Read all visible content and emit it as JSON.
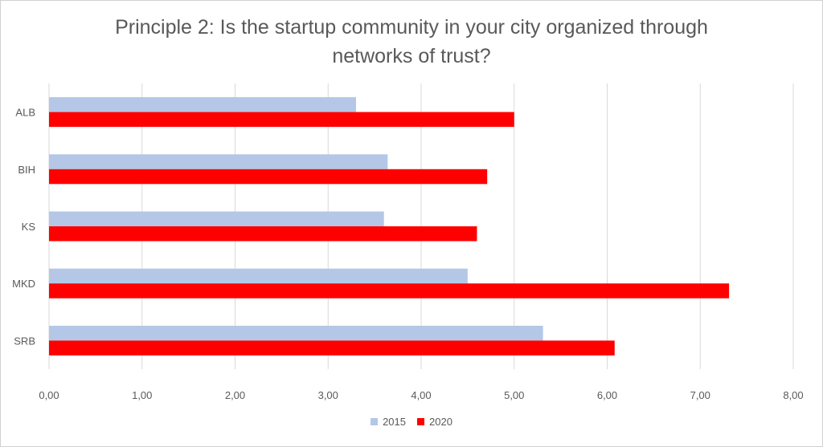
{
  "chart_data": {
    "type": "bar",
    "orientation": "horizontal",
    "title_lines": [
      "Principle 2: Is the startup community in your city organized through",
      "networks of trust?"
    ],
    "categories": [
      "ALB",
      "BIH",
      "KS",
      "MKD",
      "SRB"
    ],
    "series": [
      {
        "name": "2015",
        "color": "#b4c7e7",
        "values": [
          3.3,
          3.64,
          3.6,
          4.5,
          5.31
        ]
      },
      {
        "name": "2020",
        "color": "#ff0000",
        "values": [
          5.0,
          4.71,
          4.6,
          7.31,
          6.08
        ]
      }
    ],
    "xlim": [
      0,
      8
    ],
    "xticks": [
      "0,00",
      "1,00",
      "2,00",
      "3,00",
      "4,00",
      "5,00",
      "6,00",
      "7,00",
      "8,00"
    ],
    "grid": true,
    "legend_position": "bottom"
  }
}
